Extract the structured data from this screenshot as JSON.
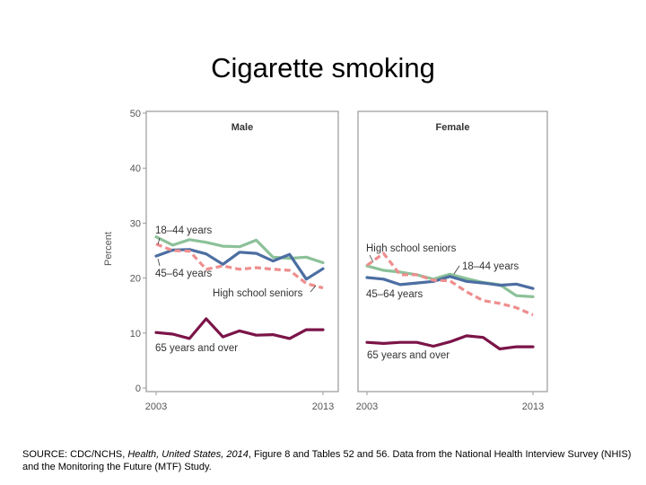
{
  "title": "Cigarette smoking",
  "source": {
    "prefix": "SOURCE: CDC/NCHS, ",
    "pub_italic": "Health, United States, 2014",
    "suffix": ", Figure 8 and Tables 52 and 56. Data from the National Health Interview Survey (NHIS) and the Monitoring the Future (MTF) Study."
  },
  "colors": {
    "young": "#8cc199",
    "middle": "#4c6ea2",
    "hs": "#ee8e8e",
    "old": "#7b1448",
    "panel_border": "#999999",
    "axis_text": "#555555"
  },
  "chart_data": [
    {
      "type": "line",
      "title": "Male",
      "ylabel": "Percent",
      "ylim": [
        0,
        50
      ],
      "yticks": [
        0,
        10,
        20,
        30,
        40,
        50
      ],
      "xlim": [
        2003,
        2013
      ],
      "xtick_labels": [
        "2003",
        "2013"
      ],
      "grid": false,
      "series": [
        {
          "name": "18–44 years",
          "role": "young",
          "x": [
            2003,
            2004,
            2005,
            2006,
            2007,
            2008,
            2009,
            2010,
            2011,
            2012,
            2013
          ],
          "values": [
            27.5,
            26.0,
            27.0,
            26.5,
            25.8,
            25.7,
            26.9,
            23.8,
            23.6,
            23.8,
            22.8
          ]
        },
        {
          "name": "45–64 years",
          "role": "middle",
          "x": [
            2003,
            2004,
            2005,
            2006,
            2007,
            2008,
            2009,
            2010,
            2011,
            2012,
            2013
          ],
          "values": [
            24.0,
            25.1,
            25.2,
            24.4,
            22.5,
            24.7,
            24.5,
            23.1,
            24.3,
            19.8,
            21.7
          ]
        },
        {
          "name": "High school seniors",
          "role": "hs",
          "x": [
            2003,
            2004,
            2005,
            2006,
            2007,
            2008,
            2009,
            2010,
            2011,
            2012,
            2013
          ],
          "values": [
            26.2,
            25.0,
            24.9,
            21.6,
            22.2,
            21.6,
            21.9,
            21.6,
            21.4,
            19.0,
            18.2
          ]
        },
        {
          "name": "65 years and over",
          "role": "old",
          "x": [
            2003,
            2004,
            2005,
            2006,
            2007,
            2008,
            2009,
            2010,
            2011,
            2012,
            2013
          ],
          "values": [
            10.1,
            9.8,
            9.0,
            12.6,
            9.3,
            10.4,
            9.6,
            9.7,
            9.0,
            10.6,
            10.6
          ]
        }
      ],
      "labels": [
        {
          "text": "18–44 years",
          "series": "young"
        },
        {
          "text": "45–64 years",
          "series": "middle"
        },
        {
          "text": "High school seniors",
          "series": "hs"
        },
        {
          "text": "65 years and over",
          "series": "old"
        }
      ]
    },
    {
      "type": "line",
      "title": "Female",
      "ylim": [
        0,
        50
      ],
      "xlim": [
        2003,
        2013
      ],
      "xtick_labels": [
        "2003",
        "2013"
      ],
      "grid": false,
      "series": [
        {
          "name": "18–44 years",
          "role": "young",
          "x": [
            2003,
            2004,
            2005,
            2006,
            2007,
            2008,
            2009,
            2010,
            2011,
            2012,
            2013
          ],
          "values": [
            22.2,
            21.4,
            21.1,
            20.6,
            19.8,
            20.7,
            19.9,
            19.2,
            18.8,
            16.8,
            16.6
          ]
        },
        {
          "name": "45–64 years",
          "role": "middle",
          "x": [
            2003,
            2004,
            2005,
            2006,
            2007,
            2008,
            2009,
            2010,
            2011,
            2012,
            2013
          ],
          "values": [
            20.1,
            19.8,
            18.8,
            19.1,
            19.4,
            20.3,
            19.4,
            19.1,
            18.7,
            18.9,
            18.1
          ]
        },
        {
          "name": "High school seniors",
          "role": "hs",
          "x": [
            2003,
            2004,
            2005,
            2006,
            2007,
            2008,
            2009,
            2010,
            2011,
            2012,
            2013
          ],
          "values": [
            22.3,
            24.5,
            20.6,
            20.6,
            19.6,
            19.5,
            17.5,
            15.9,
            15.4,
            14.6,
            13.3
          ]
        },
        {
          "name": "65 years and over",
          "role": "old",
          "x": [
            2003,
            2004,
            2005,
            2006,
            2007,
            2008,
            2009,
            2010,
            2011,
            2012,
            2013
          ],
          "values": [
            8.3,
            8.1,
            8.3,
            8.3,
            7.6,
            8.4,
            9.5,
            9.2,
            7.1,
            7.5,
            7.5
          ]
        }
      ],
      "labels": [
        {
          "text": "High school seniors",
          "series": "hs"
        },
        {
          "text": "18–44 years",
          "series": "young"
        },
        {
          "text": "45–64 years",
          "series": "middle"
        },
        {
          "text": "65 years and over",
          "series": "old"
        }
      ]
    }
  ]
}
